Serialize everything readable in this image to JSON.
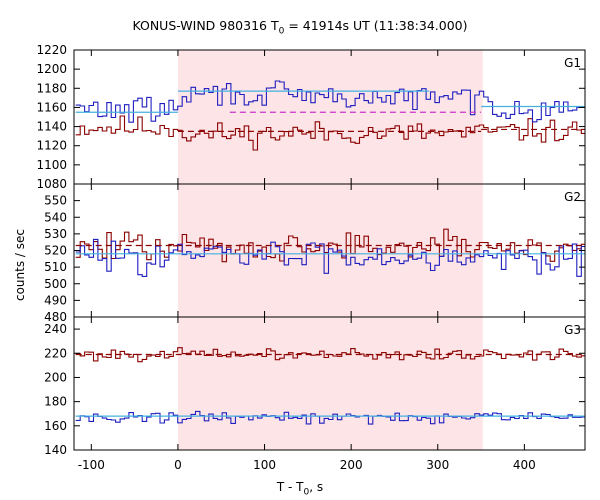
{
  "title_prefix": "KONUS-WIND 980316 T",
  "title_sub": "0",
  "title_suffix": " = 41914s UT (11:38:34.000)",
  "ylabel": "counts / sec",
  "xlabel_prefix": "T - T",
  "xlabel_sub": "0",
  "xlabel_suffix": ", s",
  "colors": {
    "red": "#8b0000",
    "blue": "#1f1fbf",
    "shade": "#fde4e6",
    "cyan": "#44b0e0",
    "magenta": "#cc33cc"
  },
  "chart_data": {
    "type": "line",
    "x_range": [
      -120,
      470
    ],
    "x_ticks": [
      -100,
      0,
      100,
      200,
      300,
      400
    ],
    "shaded_interval": [
      0,
      352
    ],
    "bin_width": 5.12,
    "x_start": -118,
    "panels": [
      {
        "name": "G1",
        "ylim": [
          1080,
          1220
        ],
        "yticks": [
          1080,
          1100,
          1120,
          1140,
          1160,
          1180,
          1200,
          1220
        ],
        "series": [
          {
            "color": "red",
            "mean": 1139,
            "amp": 18,
            "seed": 11,
            "wave": [
              [
                -118,
                0,
                0
              ],
              [
                0,
                120,
                -7
              ],
              [
                120,
                350,
                -6
              ],
              [
                350,
                470,
                -4
              ]
            ]
          },
          {
            "color": "blue",
            "mean": 1158,
            "amp": 20,
            "seed": 29,
            "wave": [
              [
                -118,
                0,
                0
              ],
              [
                0,
                120,
                16
              ],
              [
                120,
                350,
                12
              ],
              [
                350,
                470,
                2
              ]
            ]
          }
        ],
        "levels": [
          {
            "color": "cyan",
            "dash": false,
            "x0": -118,
            "x1": 0,
            "y": 1155
          },
          {
            "color": "cyan",
            "dash": false,
            "x0": 0,
            "x1": 290,
            "y": 1177
          },
          {
            "color": "cyan",
            "dash": false,
            "x0": 350,
            "x1": 470,
            "y": 1161
          },
          {
            "color": "red",
            "dash": true,
            "x0": 0,
            "x1": 350,
            "y": 1135
          },
          {
            "color": "magenta",
            "dash": true,
            "x0": 60,
            "x1": 350,
            "y": 1155
          },
          {
            "color": "red",
            "dash": true,
            "x0": 350,
            "x1": 470,
            "y": 1137
          }
        ]
      },
      {
        "name": "G2",
        "ylim": [
          480,
          560
        ],
        "yticks": [
          480,
          490,
          500,
          510,
          520,
          530,
          540,
          550
        ],
        "series": [
          {
            "color": "red",
            "mean": 522,
            "amp": 13,
            "seed": 47,
            "wave": [
              [
                -118,
                470,
                0
              ]
            ]
          },
          {
            "color": "blue",
            "mean": 517,
            "amp": 14,
            "seed": 83,
            "wave": [
              [
                -118,
                470,
                0
              ]
            ]
          }
        ],
        "levels": [
          {
            "color": "cyan",
            "dash": false,
            "x0": -118,
            "x1": 470,
            "y": 518
          },
          {
            "color": "red",
            "dash": true,
            "x0": -118,
            "x1": 470,
            "y": 523
          }
        ]
      },
      {
        "name": "G3",
        "ylim": [
          140,
          250
        ],
        "yticks": [
          140,
          160,
          180,
          200,
          220,
          240
        ],
        "series": [
          {
            "color": "red",
            "mean": 219,
            "amp": 7,
            "seed": 101,
            "wave": [
              [
                -118,
                470,
                0
              ]
            ]
          },
          {
            "color": "blue",
            "mean": 167,
            "amp": 7,
            "seed": 131,
            "wave": [
              [
                -118,
                470,
                0
              ]
            ]
          }
        ],
        "levels": [
          {
            "color": "cyan",
            "dash": false,
            "x0": -118,
            "x1": 470,
            "y": 168
          },
          {
            "color": "red",
            "dash": true,
            "x0": -118,
            "x1": 470,
            "y": 219
          }
        ]
      }
    ]
  }
}
